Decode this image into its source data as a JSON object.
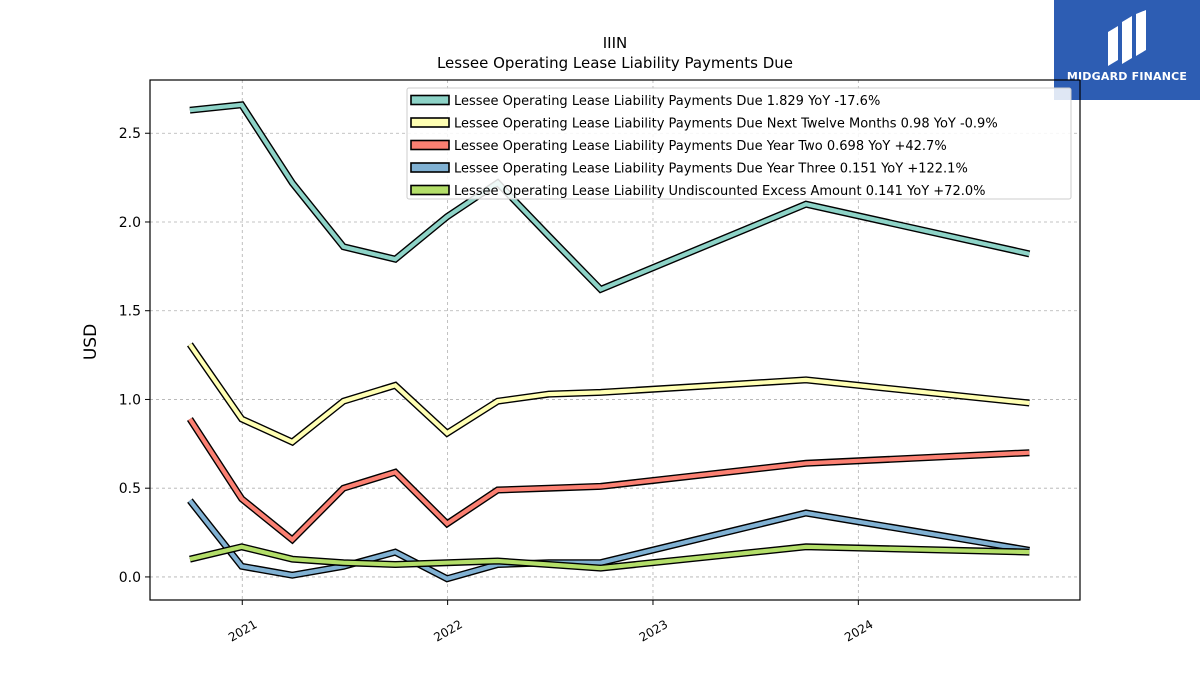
{
  "brand": {
    "name": "MIDGARD FINANCE",
    "bg_color": "#2d5db3"
  },
  "chart_data": {
    "type": "line",
    "title": "IIIN",
    "subtitle": "Lessee Operating Lease Liability Payments Due",
    "ylabel": "USD",
    "xlabel": "",
    "ylim": [
      -0.13,
      2.8
    ],
    "yticks": [
      0.0,
      0.5,
      1.0,
      1.5,
      2.0,
      2.5
    ],
    "ytick_labels": [
      "0.0",
      "0.5",
      "1.0",
      "1.5",
      "2.0",
      "2.5"
    ],
    "xlim": [
      "2020-07-21",
      "2025-01-29"
    ],
    "xticks": [
      "2021-01-01",
      "2022-01-01",
      "2023-01-01",
      "2024-01-01"
    ],
    "xtick_labels": [
      "2021",
      "2022",
      "2023",
      "2024"
    ],
    "grid": true,
    "legend_position": "top-right",
    "x": [
      "2020-09-30",
      "2020-12-31",
      "2021-03-31",
      "2021-06-30",
      "2021-09-30",
      "2021-12-31",
      "2022-03-31",
      "2022-06-30",
      "2022-09-30",
      "2023-09-30",
      "2024-10-31"
    ],
    "series": [
      {
        "name": "Lessee Operating Lease Liability Payments Due",
        "legend": "Lessee Operating Lease Liability Payments Due  1.829 YoY -17.6%",
        "color": "#8dd3c7",
        "values": [
          2.63,
          2.66,
          2.22,
          1.86,
          1.79,
          2.03,
          2.22,
          1.92,
          1.62,
          2.1,
          1.82
        ]
      },
      {
        "name": "Lessee Operating Lease Liability Payments Due Next Twelve Months",
        "legend": "Lessee Operating Lease Liability Payments Due Next Twelve Months  0.98 YoY -0.9%",
        "color": "#ffffb3",
        "values": [
          1.31,
          0.89,
          0.76,
          0.99,
          1.08,
          0.81,
          0.99,
          1.03,
          1.04,
          1.11,
          0.98
        ]
      },
      {
        "name": "Lessee Operating Lease Liability Payments Due Year Two",
        "legend": "Lessee Operating Lease Liability Payments Due Year Two  0.698 YoY +42.7%",
        "color": "#fb8072",
        "values": [
          0.89,
          0.44,
          0.21,
          0.5,
          0.59,
          0.3,
          0.49,
          0.5,
          0.51,
          0.64,
          0.7
        ]
      },
      {
        "name": "Lessee Operating Lease Liability Payments Due Year Three",
        "legend": "Lessee Operating Lease Liability Payments Due Year Three  0.151 YoY +122.1%",
        "color": "#80b1d3",
        "values": [
          0.43,
          0.06,
          0.01,
          0.06,
          0.14,
          -0.01,
          0.07,
          0.08,
          0.08,
          0.36,
          0.15
        ]
      },
      {
        "name": "Lessee Operating Lease Liability Undiscounted Excess Amount",
        "legend": "Lessee Operating Lease Liability Undiscounted Excess Amount  0.141 YoY +72.0%",
        "color": "#b3de69",
        "values": [
          0.1,
          0.17,
          0.1,
          0.08,
          0.07,
          0.08,
          0.09,
          0.07,
          0.05,
          0.17,
          0.14
        ]
      }
    ]
  }
}
